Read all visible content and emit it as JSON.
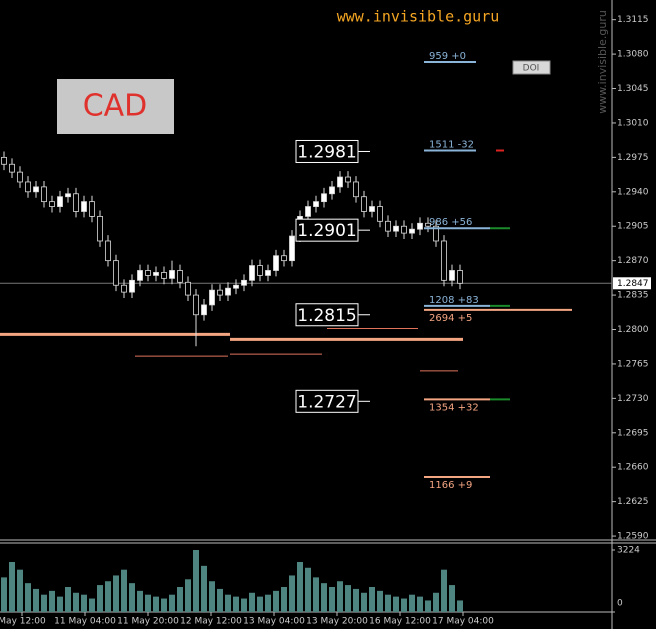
{
  "chart_data": {
    "type": "candlestick",
    "site": "www.invisible.guru",
    "watermark": "www.invisible.guru",
    "symbol": "CAD",
    "button": "DOI",
    "ylim": [
      1.2586,
      1.3135
    ],
    "yticks": [
      1.3115,
      {
        "value": 1.308,
        "label": "1.3080"
      },
      1.3045,
      {
        "value": 1.301,
        "label": "1.3010"
      },
      1.2975,
      {
        "value": 1.294,
        "label": "1.2940"
      },
      1.2905,
      {
        "value": 1.287,
        "label": "1.2870"
      },
      1.2835,
      {
        "value": 1.28,
        "label": "1.2800"
      },
      1.2765,
      {
        "value": 1.273,
        "label": "1.2730"
      },
      1.2695,
      {
        "value": 1.266,
        "label": "1.2660"
      },
      1.2625,
      {
        "value": 1.259,
        "label": "1.2590"
      }
    ],
    "current_price": 1.2847,
    "candles": {
      "open": [
        1.2975,
        1.2968,
        1.296,
        1.295,
        1.294,
        1.2945,
        1.293,
        1.2925,
        1.2935,
        1.2938,
        1.292,
        1.293,
        1.2915,
        1.289,
        1.287,
        1.2845,
        1.2838,
        1.285,
        1.286,
        1.2855,
        1.2858,
        1.2852,
        1.286,
        1.2848,
        1.2835,
        1.2815,
        1.2825,
        1.284,
        1.2835,
        1.2842,
        1.2845,
        1.285,
        1.2865,
        1.2855,
        1.286,
        1.2875,
        1.287,
        1.2895,
        1.2915,
        1.2925,
        1.293,
        1.2938,
        1.2945,
        1.2955,
        1.295,
        1.2935,
        1.292,
        1.2925,
        1.291,
        1.29,
        1.2905,
        1.2898,
        1.2902,
        1.2908,
        1.2905,
        1.289,
        1.285,
        1.286
      ],
      "high": [
        1.2981,
        1.2974,
        1.2966,
        1.2956,
        1.2951,
        1.2951,
        1.2936,
        1.2941,
        1.2944,
        1.2944,
        1.2936,
        1.2936,
        1.2921,
        1.2896,
        1.2876,
        1.2851,
        1.2856,
        1.2866,
        1.2866,
        1.2864,
        1.2864,
        1.287,
        1.2866,
        1.2854,
        1.2841,
        1.2831,
        1.2846,
        1.2846,
        1.2848,
        1.2851,
        1.2856,
        1.2871,
        1.2871,
        1.2866,
        1.2881,
        1.2881,
        1.2901,
        1.2921,
        1.2931,
        1.2936,
        1.2944,
        1.2951,
        1.2961,
        1.2961,
        1.2956,
        1.2941,
        1.2931,
        1.2931,
        1.2916,
        1.2911,
        1.2911,
        1.2908,
        1.2914,
        1.2914,
        1.2911,
        1.2896,
        1.2866,
        1.2866
      ],
      "low": [
        1.2962,
        1.2954,
        1.2944,
        1.2934,
        1.2934,
        1.2924,
        1.2919,
        1.2919,
        1.2929,
        1.2914,
        1.2914,
        1.2909,
        1.2884,
        1.2864,
        1.2839,
        1.2832,
        1.2832,
        1.2844,
        1.2849,
        1.2849,
        1.2846,
        1.2846,
        1.2842,
        1.2829,
        1.2783,
        1.2809,
        1.2819,
        1.2829,
        1.2829,
        1.2836,
        1.2839,
        1.2844,
        1.2849,
        1.2849,
        1.2854,
        1.2864,
        1.2864,
        1.2889,
        1.2909,
        1.2919,
        1.2924,
        1.2932,
        1.2939,
        1.2944,
        1.2929,
        1.2914,
        1.2914,
        1.2904,
        1.2894,
        1.2894,
        1.2892,
        1.2892,
        1.2896,
        1.2899,
        1.2884,
        1.2844,
        1.2844,
        1.2841
      ],
      "close": [
        1.2968,
        1.296,
        1.295,
        1.294,
        1.2945,
        1.293,
        1.2925,
        1.2935,
        1.2938,
        1.292,
        1.293,
        1.2915,
        1.289,
        1.287,
        1.2845,
        1.2838,
        1.285,
        1.286,
        1.2855,
        1.2858,
        1.2852,
        1.286,
        1.2848,
        1.2835,
        1.2815,
        1.2825,
        1.284,
        1.2835,
        1.2842,
        1.2845,
        1.285,
        1.2865,
        1.2855,
        1.286,
        1.2875,
        1.287,
        1.2895,
        1.2915,
        1.2925,
        1.293,
        1.2938,
        1.2945,
        1.2955,
        1.295,
        1.2935,
        1.292,
        1.2925,
        1.291,
        1.29,
        1.2905,
        1.2898,
        1.2902,
        1.2908,
        1.2905,
        1.289,
        1.285,
        1.286,
        1.2847
      ]
    },
    "volume": {
      "values": [
        1800,
        2600,
        2200,
        1500,
        1200,
        900,
        1100,
        800,
        1300,
        1000,
        900,
        700,
        1400,
        1600,
        1900,
        2200,
        1500,
        1100,
        900,
        800,
        700,
        900,
        1300,
        1700,
        3224,
        2400,
        1600,
        1200,
        900,
        800,
        700,
        1000,
        800,
        900,
        1100,
        1300,
        1900,
        2600,
        2300,
        1800,
        1500,
        1300,
        1600,
        1400,
        1200,
        1000,
        1300,
        1100,
        900,
        800,
        700,
        900,
        800,
        600,
        1000,
        2200,
        1400,
        600
      ],
      "ylim": [
        0,
        3224
      ],
      "yticks": [
        3224,
        0
      ],
      "color": "#4f8580"
    },
    "time_labels": [
      "May 12:00",
      "11 May 04:00",
      "11 May 20:00",
      "12 May 12:00",
      "13 May 04:00",
      "13 May 20:00",
      "16 May 12:00",
      "17 May 04:00"
    ],
    "levels": [
      1.2981,
      1.2901,
      1.2815,
      1.2727
    ],
    "markers": [
      {
        "label": "959 +0",
        "value": 1.3072,
        "color": "#8ab4d8"
      },
      {
        "label": "1511 -32",
        "value": 1.2982,
        "color": "#8ab4d8"
      },
      {
        "label": "986 +56",
        "value": 1.2903,
        "color": "#8ab4d8"
      },
      {
        "label": "1208 +83",
        "value": 1.2824,
        "color": "#8ab4d8"
      },
      {
        "label": "2694 +5",
        "value": 1.282,
        "color": "#f4a582"
      },
      {
        "label": "1354 +32",
        "value": 1.2729,
        "color": "#f4a582"
      },
      {
        "label": "1166 +9",
        "value": 1.265,
        "color": "#f4a582"
      }
    ],
    "zones": [
      {
        "value": 1.2795,
        "color": "#f4a582"
      },
      {
        "value": 1.279,
        "color": "#f4a582"
      },
      {
        "value": 1.2773,
        "color": "#e0735a"
      },
      {
        "value": 1.2775,
        "color": "#e0735a"
      },
      {
        "value": 1.2801,
        "color": "#e0735a"
      },
      {
        "value": 1.2758,
        "color": "#e0735a"
      }
    ]
  }
}
